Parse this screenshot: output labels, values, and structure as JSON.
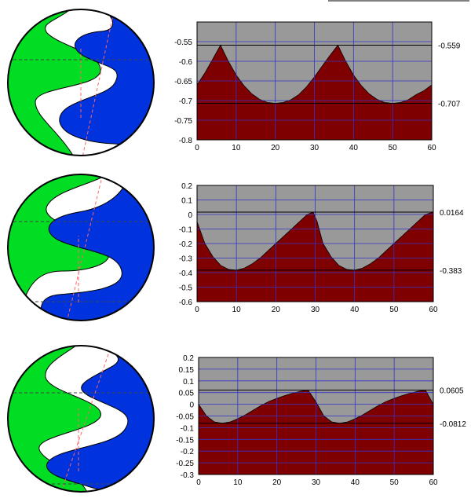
{
  "colors": {
    "plot_background": "#999999",
    "fill_area": "#7f0000",
    "grid": "#3333cc",
    "reference_line": "#000000",
    "rotor_green": "#00dd22",
    "rotor_blue": "#0033dd",
    "casing": "#000000",
    "guide_line": "#ff6666"
  },
  "chart_data": [
    {
      "type": "area",
      "title": "",
      "xlabel": "",
      "ylabel": "",
      "xlim": [
        0,
        60
      ],
      "ylim": [
        -0.8,
        -0.5
      ],
      "grid": true,
      "x_ticks": [
        "0",
        "10",
        "20",
        "30",
        "40",
        "50",
        "60"
      ],
      "y_ticks": [
        "-0.55",
        "-0.6",
        "-0.65",
        "-0.7",
        "-0.75",
        "-0.8"
      ],
      "reference_lines": [
        {
          "value": -0.559,
          "label": "-0.559"
        },
        {
          "value": -0.707,
          "label": "-0.707"
        }
      ],
      "x": [
        0,
        2,
        4,
        6,
        8,
        10,
        12,
        14,
        16,
        18,
        20,
        22,
        24,
        26,
        28,
        30,
        32,
        34,
        36,
        38,
        40,
        42,
        44,
        46,
        48,
        50,
        52,
        54,
        56,
        58,
        60
      ],
      "values": [
        -0.66,
        -0.63,
        -0.595,
        -0.559,
        -0.6,
        -0.635,
        -0.662,
        -0.683,
        -0.697,
        -0.705,
        -0.707,
        -0.705,
        -0.698,
        -0.685,
        -0.665,
        -0.64,
        -0.612,
        -0.585,
        -0.559,
        -0.6,
        -0.635,
        -0.662,
        -0.683,
        -0.697,
        -0.705,
        -0.707,
        -0.705,
        -0.698,
        -0.685,
        -0.675,
        -0.66
      ]
    },
    {
      "type": "area",
      "title": "",
      "xlabel": "",
      "ylabel": "",
      "xlim": [
        0,
        60
      ],
      "ylim": [
        -0.6,
        0.2
      ],
      "grid": true,
      "x_ticks": [
        "0",
        "10",
        "20",
        "30",
        "40",
        "50",
        "60"
      ],
      "y_ticks": [
        "0.2",
        "0.1",
        "0",
        "-0.1",
        "-0.2",
        "-0.3",
        "-0.4",
        "-0.5",
        "-0.6"
      ],
      "reference_lines": [
        {
          "value": 0.0164,
          "label": "0.0164"
        },
        {
          "value": -0.383,
          "label": "-0.383"
        }
      ],
      "x": [
        0,
        2,
        4,
        6,
        8,
        10,
        12,
        14,
        16,
        18,
        20,
        22,
        24,
        26,
        28,
        29.5,
        30.5,
        32,
        34,
        36,
        38,
        40,
        42,
        44,
        46,
        48,
        50,
        52,
        54,
        56,
        58,
        60
      ],
      "values": [
        -0.05,
        -0.2,
        -0.29,
        -0.35,
        -0.378,
        -0.383,
        -0.37,
        -0.34,
        -0.3,
        -0.25,
        -0.2,
        -0.15,
        -0.1,
        -0.05,
        0.0,
        0.0164,
        -0.05,
        -0.2,
        -0.29,
        -0.35,
        -0.378,
        -0.383,
        -0.37,
        -0.34,
        -0.3,
        -0.25,
        -0.2,
        -0.15,
        -0.1,
        -0.05,
        0.0,
        0.0164
      ]
    },
    {
      "type": "area",
      "title": "",
      "xlabel": "",
      "ylabel": "",
      "xlim": [
        0,
        60
      ],
      "ylim": [
        -0.3,
        0.2
      ],
      "grid": true,
      "x_ticks": [
        "0",
        "10",
        "20",
        "30",
        "40",
        "50",
        "60"
      ],
      "y_ticks": [
        "0.2",
        "0.15",
        "0.1",
        "0.05",
        "0",
        "-0.05",
        "-0.1",
        "-0.15",
        "-0.2",
        "-0.25",
        "-0.3"
      ],
      "reference_lines": [
        {
          "value": 0.0605,
          "label": "0.0605"
        },
        {
          "value": -0.0812,
          "label": "-0.0812"
        }
      ],
      "x": [
        0,
        2,
        4,
        6,
        8,
        10,
        12,
        14,
        16,
        18,
        20,
        22,
        24,
        26,
        28,
        30,
        32,
        34,
        36,
        38,
        40,
        42,
        44,
        46,
        48,
        50,
        52,
        54,
        56,
        58,
        60
      ],
      "values": [
        0.0,
        -0.05,
        -0.075,
        -0.0812,
        -0.076,
        -0.062,
        -0.045,
        -0.025,
        -0.005,
        0.012,
        0.025,
        0.037,
        0.047,
        0.055,
        0.0605,
        0.01,
        -0.05,
        -0.075,
        -0.0812,
        -0.076,
        -0.062,
        -0.045,
        -0.025,
        -0.005,
        0.012,
        0.025,
        0.037,
        0.047,
        0.055,
        0.0605,
        0.0
      ]
    }
  ]
}
